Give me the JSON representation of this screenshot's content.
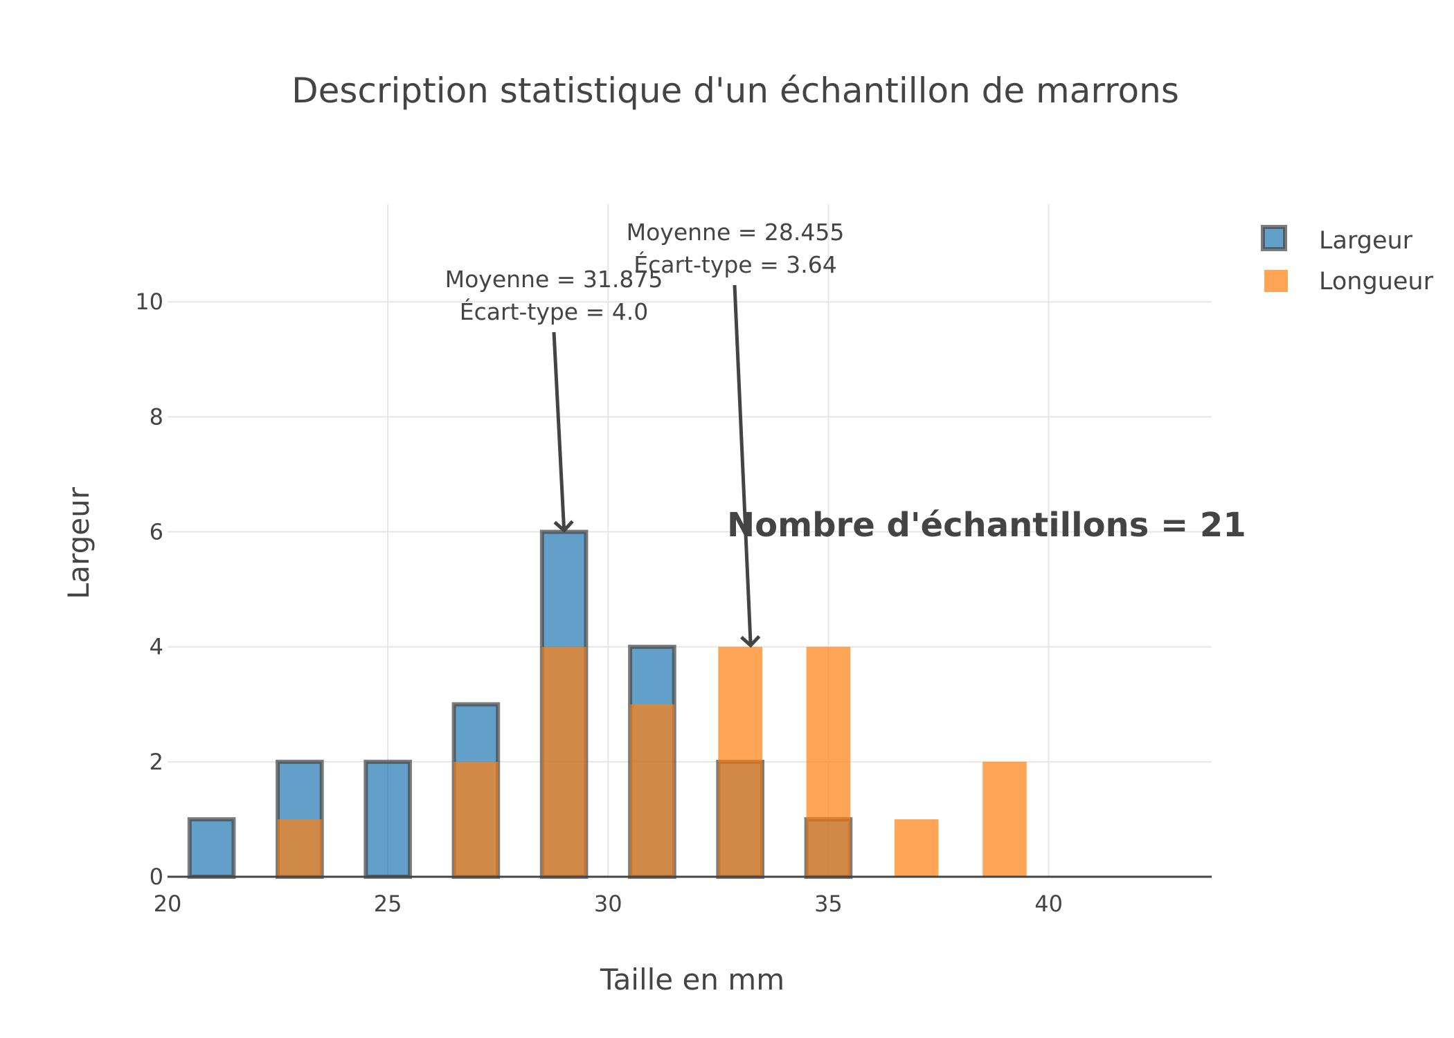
{
  "chart_data": {
    "type": "bar",
    "mode": "overlay histogram",
    "title": "Description statistique d'un échantillon de marrons",
    "xlabel": "Taille en mm",
    "ylabel": "Largeur",
    "xlim": [
      20,
      43.7
    ],
    "ylim": [
      0,
      11.7
    ],
    "x_ticks": [
      20,
      25,
      30,
      35,
      40
    ],
    "y_ticks": [
      0,
      2,
      4,
      6,
      8,
      10
    ],
    "grid": true,
    "legend_position": "top-right",
    "bin_width": 2,
    "series": [
      {
        "name": "Largeur",
        "color": "#1f77b4",
        "border_color": "#444444",
        "bins": [
          {
            "x": 21,
            "value": 1
          },
          {
            "x": 23,
            "value": 2
          },
          {
            "x": 25,
            "value": 2
          },
          {
            "x": 27,
            "value": 3
          },
          {
            "x": 29,
            "value": 6
          },
          {
            "x": 31,
            "value": 4
          },
          {
            "x": 33,
            "value": 2
          },
          {
            "x": 35,
            "value": 1
          }
        ]
      },
      {
        "name": "Longueur",
        "color": "#ff7f0e",
        "bins": [
          {
            "x": 23,
            "value": 1
          },
          {
            "x": 27,
            "value": 2
          },
          {
            "x": 29,
            "value": 4
          },
          {
            "x": 31,
            "value": 3
          },
          {
            "x": 33,
            "value": 4
          },
          {
            "x": 35,
            "value": 4
          },
          {
            "x": 37,
            "value": 1
          },
          {
            "x": 39,
            "value": 2
          }
        ]
      }
    ],
    "annotations": [
      {
        "lines": [
          "Moyenne = 31.875",
          "Écart-type = 4.0"
        ],
        "x": 29,
        "y": 6
      },
      {
        "lines": [
          "Moyenne = 28.455",
          "Écart-type = 3.64"
        ],
        "x": 33,
        "y": 4
      }
    ],
    "sample_annotation": "Nombre d'échantillons = 21"
  }
}
